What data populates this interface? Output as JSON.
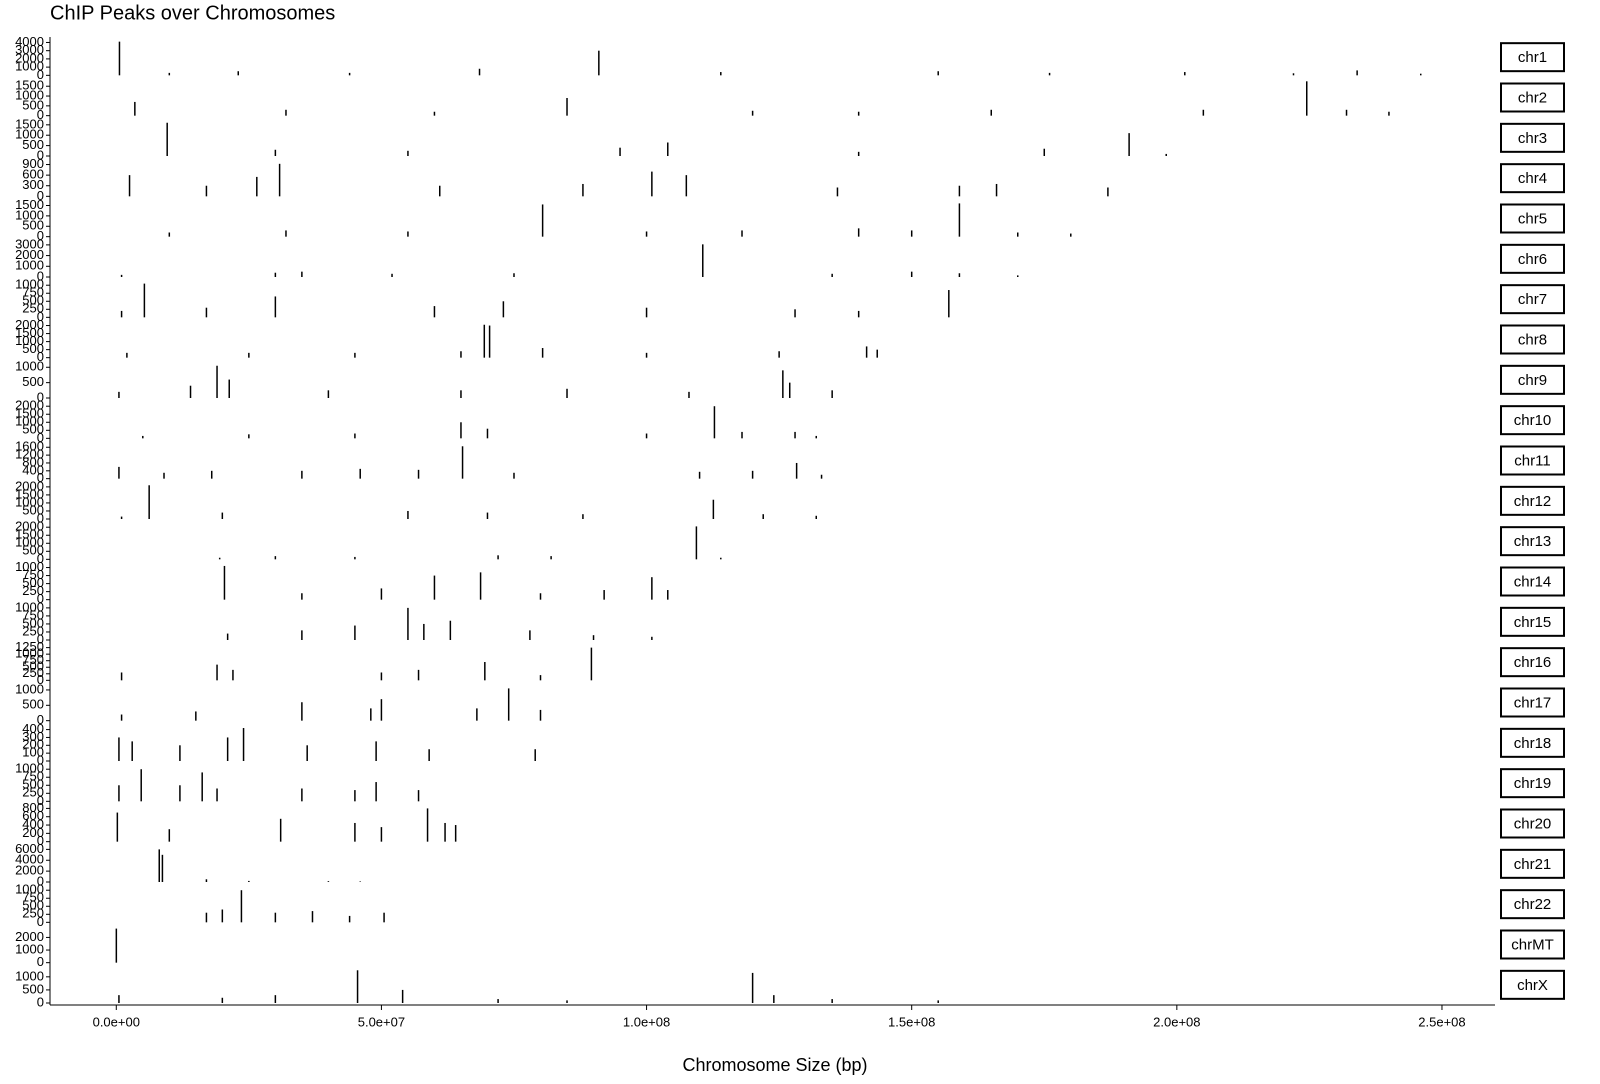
{
  "chart_data": {
    "type": "bar",
    "title": "ChIP Peaks over Chromosomes",
    "x_label": "Chromosome Size (bp)",
    "color": "#000000",
    "xlim": [
      -12500000,
      260000000
    ],
    "xticks": [
      {
        "value": 0,
        "label": "0.0e+00"
      },
      {
        "value": 50000000,
        "label": "5.0e+07"
      },
      {
        "value": 100000000,
        "label": "1.0e+08"
      },
      {
        "value": 150000000,
        "label": "1.5e+08"
      },
      {
        "value": 200000000,
        "label": "2.0e+08"
      },
      {
        "value": 250000000,
        "label": "2.5e+08"
      }
    ],
    "panels": [
      {
        "name": "chr1",
        "ylim": [
          0,
          4300
        ],
        "yticks": [
          0,
          1000,
          2000,
          3000,
          4000
        ],
        "x": [
          600000.0,
          10000000.0,
          23000000.0,
          44000000.0,
          68500000.0,
          91000000.0,
          114000000.0,
          155000000.0,
          176000000.0,
          201500000.0,
          222000000.0,
          234000000.0,
          246000000.0
        ],
        "values": [
          4100,
          300,
          500,
          300,
          800,
          3000,
          400,
          500,
          300,
          400,
          250,
          600,
          200
        ]
      },
      {
        "name": "chr2",
        "ylim": [
          0,
          1800
        ],
        "yticks": [
          0,
          500,
          1000,
          1500
        ],
        "x": [
          3500000.0,
          32000000.0,
          60000000.0,
          85000000.0,
          120000000.0,
          140000000.0,
          165000000.0,
          205000000.0,
          224500000.0,
          232000000.0,
          240000000.0
        ],
        "values": [
          700,
          300,
          200,
          900,
          250,
          200,
          300,
          300,
          1750,
          300,
          200
        ]
      },
      {
        "name": "chr3",
        "ylim": [
          0,
          1700
        ],
        "yticks": [
          0,
          500,
          1000,
          1500
        ],
        "x": [
          9600000.0,
          30000000.0,
          55000000.0,
          95000000.0,
          104000000.0,
          140000000.0,
          175000000.0,
          191000000.0,
          198000000.0
        ],
        "values": [
          1600,
          300,
          250,
          400,
          650,
          200,
          350,
          1100,
          100
        ]
      },
      {
        "name": "chr4",
        "ylim": [
          0,
          1000
        ],
        "yticks": [
          0,
          300,
          600,
          900
        ],
        "x": [
          2500000.0,
          17000000.0,
          26500000.0,
          30800000.0,
          61000000.0,
          88000000.0,
          101000000.0,
          107500000.0,
          136000000.0,
          159000000.0,
          166000000.0,
          187000000.0
        ],
        "values": [
          600,
          300,
          550,
          920,
          300,
          350,
          700,
          600,
          250,
          300,
          350,
          250
        ]
      },
      {
        "name": "chr5",
        "ylim": [
          0,
          1700
        ],
        "yticks": [
          0,
          500,
          1000,
          1500
        ],
        "x": [
          10000000.0,
          32000000.0,
          55000000.0,
          80400000.0,
          100000000.0,
          118000000.0,
          140000000.0,
          150000000.0,
          159000000.0,
          170000000.0,
          180000000.0
        ],
        "values": [
          200,
          300,
          250,
          1550,
          250,
          300,
          400,
          300,
          1600,
          200,
          150
        ]
      },
      {
        "name": "chr6",
        "ylim": [
          0,
          3300
        ],
        "yticks": [
          0,
          1000,
          2000,
          3000
        ],
        "x": [
          1000000.0,
          30000000.0,
          35000000.0,
          52000000.0,
          75000000.0,
          110600000.0,
          135000000.0,
          150000000.0,
          159000000.0,
          170000000.0
        ],
        "values": [
          200,
          400,
          500,
          300,
          350,
          3050,
          300,
          500,
          350,
          150
        ]
      },
      {
        "name": "chr7",
        "ylim": [
          0,
          1100
        ],
        "yticks": [
          0,
          250,
          500,
          750,
          1000
        ],
        "x": [
          1000000.0,
          5300000.0,
          17000000.0,
          30000000.0,
          60000000.0,
          73000000.0,
          100000000.0,
          128000000.0,
          140000000.0,
          157000000.0
        ],
        "values": [
          200,
          1050,
          300,
          650,
          350,
          500,
          300,
          250,
          200,
          850
        ]
      },
      {
        "name": "chr8",
        "ylim": [
          0,
          2200
        ],
        "yticks": [
          0,
          500,
          1000,
          1500,
          2000
        ],
        "x": [
          2000000.0,
          25000000.0,
          45000000.0,
          65000000.0,
          69400000.0,
          70400000.0,
          80400000.0,
          100000000.0,
          125000000.0,
          141500000.0,
          143500000.0
        ],
        "values": [
          300,
          300,
          300,
          400,
          2050,
          2000,
          600,
          300,
          400,
          700,
          500
        ]
      },
      {
        "name": "chr9",
        "ylim": [
          0,
          1150
        ],
        "yticks": [
          0,
          500,
          1000
        ],
        "x": [
          500000.0,
          14000000.0,
          19000000.0,
          21300000.0,
          40000000.0,
          65000000.0,
          85000000.0,
          108000000.0,
          125700000.0,
          127000000.0,
          135000000.0
        ],
        "values": [
          200,
          400,
          1050,
          600,
          250,
          250,
          300,
          200,
          900,
          500,
          250
        ]
      },
      {
        "name": "chr10",
        "ylim": [
          0,
          2200
        ],
        "yticks": [
          0,
          500,
          1000,
          1500,
          2000
        ],
        "x": [
          5000000.0,
          25000000.0,
          45000000.0,
          65000000.0,
          70000000.0,
          100000000.0,
          112800000.0,
          118000000.0,
          128000000.0,
          132000000.0
        ],
        "values": [
          150,
          250,
          300,
          1000,
          600,
          300,
          2000,
          400,
          400,
          150
        ]
      },
      {
        "name": "chr11",
        "ylim": [
          0,
          1800
        ],
        "yticks": [
          0,
          400,
          800,
          1200,
          1600
        ],
        "x": [
          500000.0,
          9000000.0,
          18000000.0,
          35000000.0,
          46000000.0,
          57000000.0,
          65300000.0,
          75000000.0,
          110000000.0,
          120000000.0,
          128300000.0,
          133000000.0
        ],
        "values": [
          600,
          300,
          400,
          400,
          500,
          450,
          1650,
          300,
          350,
          400,
          800,
          200
        ]
      },
      {
        "name": "chr12",
        "ylim": [
          0,
          2200
        ],
        "yticks": [
          0,
          500,
          1000,
          1500,
          2000
        ],
        "x": [
          1000000.0,
          6200000.0,
          20000000.0,
          55000000.0,
          70000000.0,
          88000000.0,
          112600000.0,
          122000000.0,
          132000000.0
        ],
        "values": [
          150,
          2100,
          400,
          500,
          400,
          300,
          1200,
          300,
          200
        ]
      },
      {
        "name": "chr13",
        "ylim": [
          0,
          2200
        ],
        "yticks": [
          0,
          500,
          1000,
          1500,
          2000
        ],
        "x": [
          19500000.0,
          30000000.0,
          45000000.0,
          72000000.0,
          82000000.0,
          109400000.0,
          114000000.0
        ],
        "values": [
          100,
          200,
          150,
          250,
          200,
          2050,
          100
        ]
      },
      {
        "name": "chr14",
        "ylim": [
          0,
          1100
        ],
        "yticks": [
          0,
          250,
          500,
          750,
          1000
        ],
        "x": [
          20400000.0,
          35000000.0,
          50000000.0,
          60000000.0,
          68700000.0,
          80000000.0,
          92000000.0,
          101000000.0,
          104000000.0
        ],
        "values": [
          1050,
          200,
          350,
          750,
          850,
          200,
          300,
          700,
          300
        ]
      },
      {
        "name": "chr15",
        "ylim": [
          0,
          1100
        ],
        "yticks": [
          0,
          250,
          500,
          750,
          1000
        ],
        "x": [
          21000000.0,
          35000000.0,
          45000000.0,
          55000000.0,
          58000000.0,
          63000000.0,
          78000000.0,
          90000000.0,
          101000000.0
        ],
        "values": [
          200,
          300,
          450,
          1000,
          500,
          600,
          300,
          150,
          100
        ]
      },
      {
        "name": "chr16",
        "ylim": [
          0,
          1350
        ],
        "yticks": [
          0,
          250,
          500,
          750,
          1000,
          1250
        ],
        "x": [
          1000000.0,
          19000000.0,
          22000000.0,
          50000000.0,
          57000000.0,
          69500000.0,
          80000000.0,
          89600000.0
        ],
        "values": [
          300,
          600,
          400,
          300,
          400,
          700,
          200,
          1250
        ]
      },
      {
        "name": "chr17",
        "ylim": [
          0,
          1150
        ],
        "yticks": [
          0,
          500,
          1000
        ],
        "x": [
          1000000.0,
          15000000.0,
          35000000.0,
          48000000.0,
          50000000.0,
          68000000.0,
          74000000.0,
          80000000.0
        ],
        "values": [
          200,
          300,
          600,
          400,
          700,
          400,
          1050,
          350
        ]
      },
      {
        "name": "chr18",
        "ylim": [
          0,
          450
        ],
        "yticks": [
          0,
          100,
          200,
          300,
          400
        ],
        "x": [
          500000.0,
          3000000.0,
          12000000.0,
          21000000.0,
          24000000.0,
          36000000.0,
          49000000.0,
          59000000.0,
          79000000.0
        ],
        "values": [
          300,
          250,
          200,
          300,
          420,
          200,
          250,
          150,
          150
        ]
      },
      {
        "name": "chr19",
        "ylim": [
          0,
          1100
        ],
        "yticks": [
          0,
          250,
          500,
          750,
          1000
        ],
        "x": [
          500000.0,
          4700000.0,
          12000000.0,
          16200000.0,
          19000000.0,
          35000000.0,
          45000000.0,
          49000000.0,
          57000000.0
        ],
        "values": [
          500,
          1000,
          500,
          900,
          400,
          400,
          350,
          600,
          350
        ]
      },
      {
        "name": "chr20",
        "ylim": [
          0,
          850
        ],
        "yticks": [
          0,
          200,
          400,
          600,
          800
        ],
        "x": [
          200000.0,
          10000000.0,
          31000000.0,
          45000000.0,
          50000000.0,
          58700000.0,
          62000000.0,
          64000000.0
        ],
        "values": [
          700,
          300,
          550,
          450,
          350,
          800,
          450,
          400
        ]
      },
      {
        "name": "chr21",
        "ylim": [
          0,
          6500
        ],
        "yticks": [
          0,
          2000,
          4000,
          6000
        ],
        "x": [
          8100000.0,
          8700000.0,
          17000000.0,
          25000000.0,
          40000000.0,
          46000000.0
        ],
        "values": [
          6000,
          5000,
          500,
          200,
          150,
          100
        ]
      },
      {
        "name": "chr22",
        "ylim": [
          0,
          1100
        ],
        "yticks": [
          0,
          250,
          500,
          750,
          1000
        ],
        "x": [
          17000000.0,
          20000000.0,
          23600000.0,
          30000000.0,
          37000000.0,
          44000000.0,
          50500000.0
        ],
        "values": [
          300,
          400,
          1000,
          300,
          350,
          200,
          300
        ]
      },
      {
        "name": "chrMT",
        "ylim": [
          0,
          2800
        ],
        "yticks": [
          0,
          1000,
          2000
        ],
        "x": [
          10000.0
        ],
        "values": [
          2700
        ]
      },
      {
        "name": "chrX",
        "ylim": [
          0,
          1350
        ],
        "yticks": [
          0,
          500,
          1000
        ],
        "x": [
          500000.0,
          20000000.0,
          30000000.0,
          45500000.0,
          54000000.0,
          72000000.0,
          85000000.0,
          120000000.0,
          124000000.0,
          135000000.0,
          155000000.0
        ],
        "values": [
          300,
          200,
          300,
          1250,
          500,
          150,
          100,
          1150,
          300,
          150,
          100
        ]
      }
    ]
  }
}
